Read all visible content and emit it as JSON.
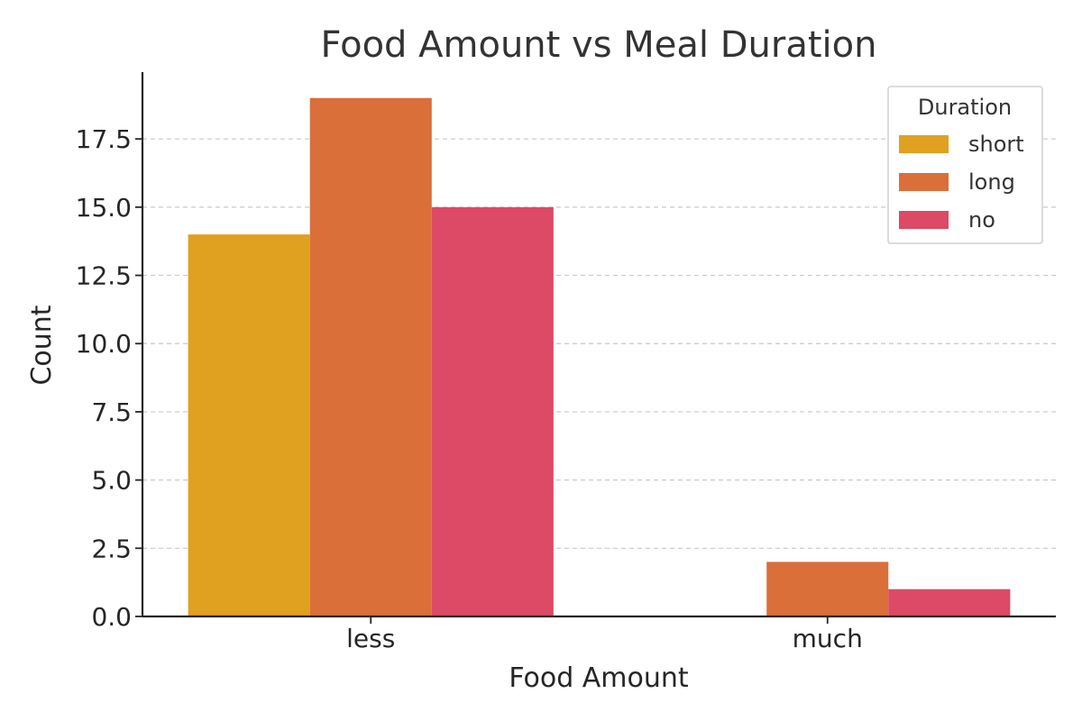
{
  "chart_data": {
    "type": "bar",
    "title": "Food Amount vs Meal Duration",
    "xlabel": "Food Amount",
    "ylabel": "Count",
    "categories": [
      "less",
      "much"
    ],
    "series": [
      {
        "name": "short",
        "values": [
          14,
          0
        ],
        "color": "#E0A020"
      },
      {
        "name": "long",
        "values": [
          19,
          2
        ],
        "color": "#DA6F3A"
      },
      {
        "name": "no",
        "values": [
          15,
          1
        ],
        "color": "#DC4A66"
      }
    ],
    "ylim": [
      0,
      19.95
    ],
    "yticks": [
      "0.0",
      "2.5",
      "5.0",
      "7.5",
      "10.0",
      "12.5",
      "15.0",
      "17.5"
    ],
    "grid": true,
    "legend": {
      "title": "Duration",
      "placement": "top-right"
    }
  }
}
